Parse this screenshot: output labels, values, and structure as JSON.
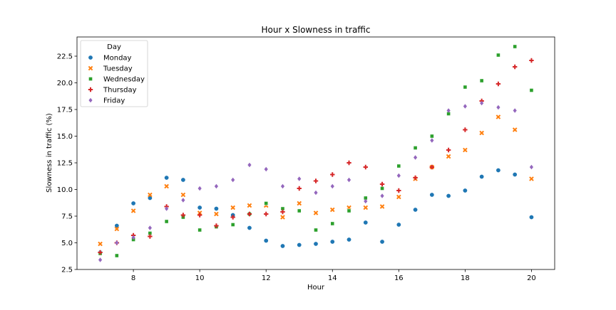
{
  "chart_data": {
    "type": "scatter",
    "title": "Hour x Slowness in traffic",
    "xlabel": "Hour",
    "ylabel": "Slowness in traffic (%)",
    "xlim": [
      6.3,
      20.7
    ],
    "ylim": [
      2.5,
      24.3
    ],
    "xticks": [
      8,
      10,
      12,
      14,
      16,
      18,
      20
    ],
    "yticks": [
      2.5,
      5.0,
      7.5,
      10.0,
      12.5,
      15.0,
      17.5,
      20.0,
      22.5
    ],
    "xtick_labels": [
      "8",
      "10",
      "12",
      "14",
      "16",
      "18",
      "20"
    ],
    "ytick_labels": [
      "2.5",
      "5.0",
      "7.5",
      "10.0",
      "12.5",
      "15.0",
      "17.5",
      "20.0",
      "22.5"
    ],
    "grid": false,
    "legend": {
      "title": "Day",
      "placement": "top-left"
    },
    "series": [
      {
        "name": "Monday",
        "color": "#1f77b4",
        "marker": "circle",
        "x": [
          7,
          7.5,
          8,
          8.5,
          9,
          9.5,
          10,
          10.5,
          11,
          11.5,
          12,
          12.5,
          13,
          13.5,
          14,
          14.5,
          15,
          15.5,
          16,
          16.5,
          17,
          17.5,
          18,
          18.5,
          19,
          19.5,
          20
        ],
        "y": [
          4.1,
          6.6,
          8.7,
          9.2,
          11.1,
          10.9,
          8.3,
          8.2,
          7.6,
          6.4,
          5.2,
          4.7,
          4.8,
          4.9,
          5.1,
          5.3,
          6.9,
          5.1,
          6.7,
          8.1,
          9.5,
          9.4,
          9.9,
          11.2,
          11.8,
          11.4,
          7.4
        ]
      },
      {
        "name": "Tuesday",
        "color": "#ff7f0e",
        "marker": "x",
        "x": [
          7,
          7.5,
          8,
          8.5,
          9,
          9.5,
          10,
          10.5,
          11,
          11.5,
          12,
          12.5,
          13,
          13.5,
          14,
          14.5,
          15,
          15.5,
          16,
          16.5,
          17,
          17.5,
          18,
          18.5,
          19,
          19.5,
          20
        ],
        "y": [
          4.9,
          6.3,
          8.0,
          9.5,
          10.3,
          9.5,
          7.8,
          7.7,
          8.3,
          8.5,
          8.5,
          7.4,
          8.7,
          7.8,
          8.1,
          8.3,
          8.3,
          8.4,
          9.3,
          11.0,
          12.1,
          13.1,
          13.7,
          15.3,
          16.8,
          15.6,
          11.0
        ]
      },
      {
        "name": "Wednesday",
        "color": "#2ca02c",
        "marker": "square",
        "x": [
          7,
          7.5,
          8,
          8.5,
          9,
          9.5,
          10,
          10.5,
          11,
          11.5,
          12,
          12.5,
          13,
          13.5,
          14,
          14.5,
          15,
          15.5,
          16,
          16.5,
          17,
          17.5,
          18,
          18.5,
          19,
          19.5,
          20
        ],
        "y": [
          4.0,
          3.8,
          5.3,
          5.9,
          7.0,
          7.4,
          6.2,
          6.5,
          6.7,
          7.7,
          8.7,
          8.2,
          8.0,
          6.2,
          6.8,
          8.0,
          9.2,
          10.1,
          12.2,
          13.9,
          15.0,
          17.1,
          19.6,
          20.2,
          22.6,
          23.4,
          19.3
        ]
      },
      {
        "name": "Thursday",
        "color": "#d62728",
        "marker": "plus",
        "x": [
          7,
          7.5,
          8,
          8.5,
          9,
          9.5,
          10,
          10.5,
          11,
          11.5,
          12,
          12.5,
          13,
          13.5,
          14,
          14.5,
          15,
          15.5,
          16,
          16.5,
          17,
          17.5,
          18,
          18.5,
          19,
          19.5,
          20
        ],
        "y": [
          4.1,
          5.0,
          5.7,
          5.6,
          8.4,
          7.6,
          7.6,
          6.6,
          7.4,
          7.7,
          7.7,
          7.9,
          10.1,
          10.8,
          11.4,
          12.5,
          12.1,
          10.5,
          9.9,
          11.1,
          12.1,
          13.7,
          15.6,
          18.3,
          19.9,
          21.5,
          22.1
        ]
      },
      {
        "name": "Friday",
        "color": "#9467bd",
        "marker": "diamond",
        "x": [
          7,
          7.5,
          8,
          8.5,
          9,
          9.5,
          10,
          10.5,
          11,
          11.5,
          12,
          12.5,
          13,
          13.5,
          14,
          14.5,
          15,
          15.5,
          16,
          16.5,
          17,
          17.5,
          18,
          18.5,
          19,
          19.5,
          20
        ],
        "y": [
          3.4,
          5.0,
          5.5,
          6.4,
          8.2,
          9.0,
          10.1,
          10.3,
          10.9,
          12.3,
          11.9,
          10.3,
          11.0,
          9.7,
          10.3,
          10.9,
          8.9,
          9.4,
          11.3,
          13.0,
          14.6,
          17.4,
          17.8,
          18.1,
          17.7,
          17.4,
          12.1
        ]
      }
    ]
  }
}
